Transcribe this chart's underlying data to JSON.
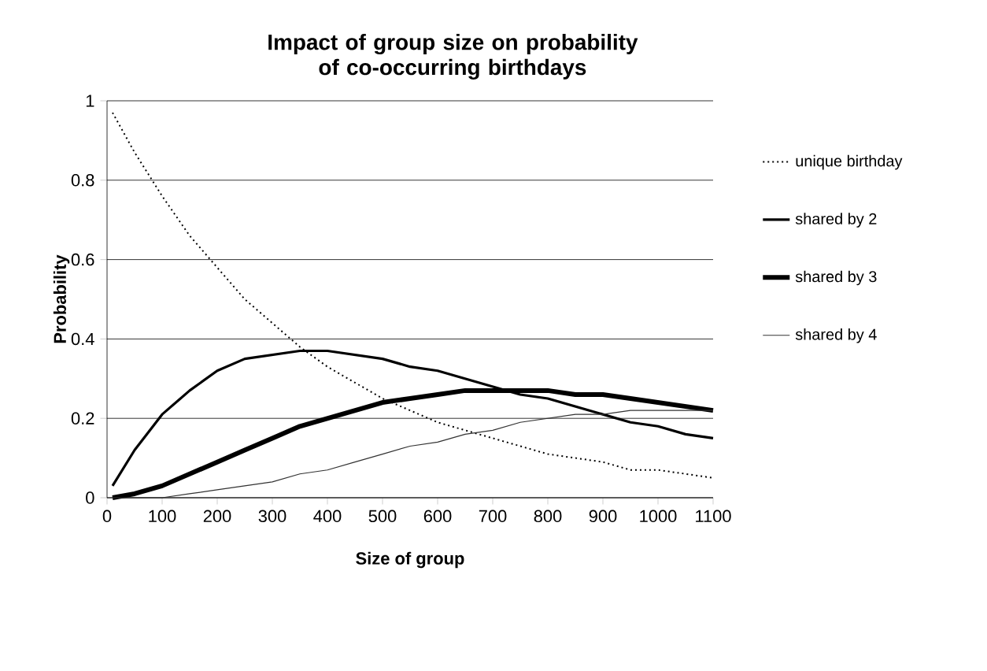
{
  "chart_data": {
    "type": "line",
    "title": "Impact of group size on probability of co-occurring birthdays",
    "xlabel": "Size of group",
    "ylabel": "Probability",
    "x": [
      10,
      50,
      100,
      150,
      200,
      250,
      300,
      350,
      400,
      450,
      500,
      550,
      600,
      650,
      700,
      750,
      800,
      850,
      900,
      950,
      1000,
      1050,
      1100
    ],
    "series": [
      {
        "name": "unique birthday",
        "color": "#000000",
        "line_style": "dotted",
        "values": [
          0.97,
          0.87,
          0.76,
          0.66,
          0.58,
          0.5,
          0.44,
          0.38,
          0.33,
          0.29,
          0.25,
          0.22,
          0.19,
          0.17,
          0.15,
          0.13,
          0.11,
          0.1,
          0.09,
          0.07,
          0.07,
          0.06,
          0.05
        ]
      },
      {
        "name": "shared by 2",
        "color": "#000000",
        "line_style": "solid",
        "values": [
          0.03,
          0.12,
          0.21,
          0.27,
          0.32,
          0.35,
          0.36,
          0.37,
          0.37,
          0.36,
          0.35,
          0.33,
          0.32,
          0.3,
          0.28,
          0.26,
          0.25,
          0.23,
          0.21,
          0.19,
          0.18,
          0.16,
          0.15
        ]
      },
      {
        "name": "shared by 3",
        "color": "#000000",
        "line_style": "solid",
        "values": [
          0.0,
          0.01,
          0.03,
          0.06,
          0.09,
          0.12,
          0.15,
          0.18,
          0.2,
          0.22,
          0.24,
          0.25,
          0.26,
          0.27,
          0.27,
          0.27,
          0.27,
          0.26,
          0.26,
          0.25,
          0.24,
          0.23,
          0.22
        ]
      },
      {
        "name": "shared by 4",
        "color": "#333333",
        "line_style": "solid",
        "values": [
          0.0,
          0.0,
          0.0,
          0.01,
          0.02,
          0.03,
          0.04,
          0.06,
          0.07,
          0.09,
          0.11,
          0.13,
          0.14,
          0.16,
          0.17,
          0.19,
          0.2,
          0.21,
          0.21,
          0.22,
          0.22,
          0.22,
          0.22
        ]
      }
    ],
    "xlim": [
      0,
      1100
    ],
    "xticks": [
      0,
      100,
      200,
      300,
      400,
      500,
      600,
      700,
      800,
      900,
      1000,
      1100
    ],
    "ylim": [
      0,
      1
    ],
    "yticks": [
      0,
      0.2,
      0.4,
      0.6,
      0.8,
      1
    ],
    "grid": "y",
    "legend": "right",
    "marker": "none"
  }
}
